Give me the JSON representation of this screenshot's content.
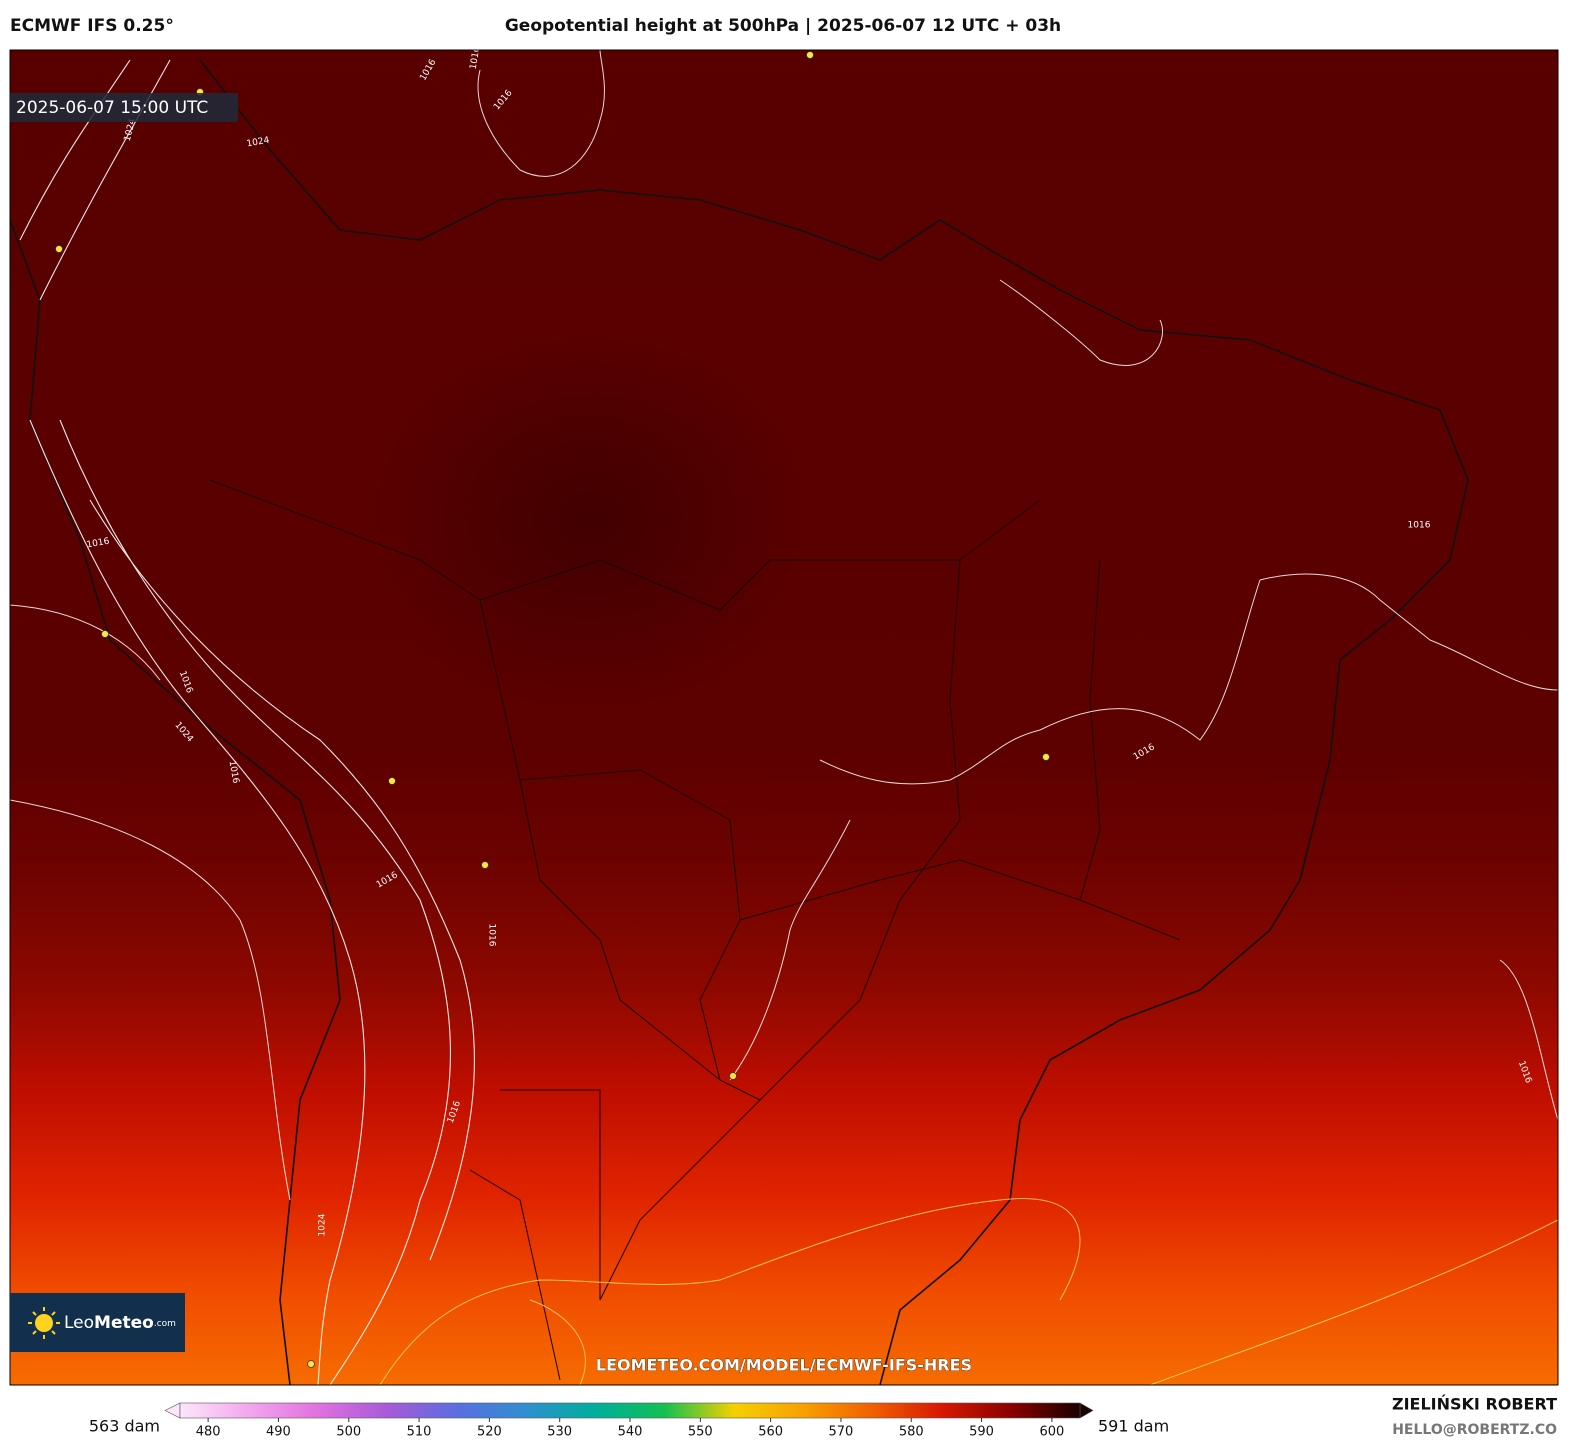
{
  "header": {
    "model": "ECMWF IFS 0.25°",
    "title": "Geopotential height at 500hPa | 2025-06-07 12 UTC + 03h"
  },
  "map": {
    "valid_time": "2025-06-07 15:00 UTC",
    "logo": {
      "name_light": "Leo",
      "name_bold": "Meteo",
      "suffix": ".com"
    },
    "watermark": "LEOMETEO.COM/MODEL/ECMWF-IFS-HRES",
    "contour_labels": [
      "1016",
      "1016",
      "1016",
      "1024",
      "1024",
      "1016",
      "1016",
      "1024",
      "1016",
      "1016",
      "1016",
      "1016",
      "1016",
      "1016",
      "1024",
      "1016"
    ]
  },
  "colorbar": {
    "min_label": "563 dam",
    "max_label": "591 dam",
    "lim": [
      476,
      604
    ],
    "ticks": [
      480,
      490,
      500,
      510,
      520,
      530,
      540,
      550,
      560,
      570,
      580,
      590,
      600
    ],
    "colors": [
      "#fde6fb",
      "#f3a6ee",
      "#e070e0",
      "#a85ad8",
      "#5a6ee0",
      "#2f8fd0",
      "#00ae9c",
      "#14c050",
      "#f5d000",
      "#f8a000",
      "#f06000",
      "#d81800",
      "#8a0000",
      "#1a0000"
    ]
  },
  "footer": {
    "author": "ZIELIŃSKI ROBERT",
    "contact": "HELLO@ROBERTZ.CO"
  }
}
